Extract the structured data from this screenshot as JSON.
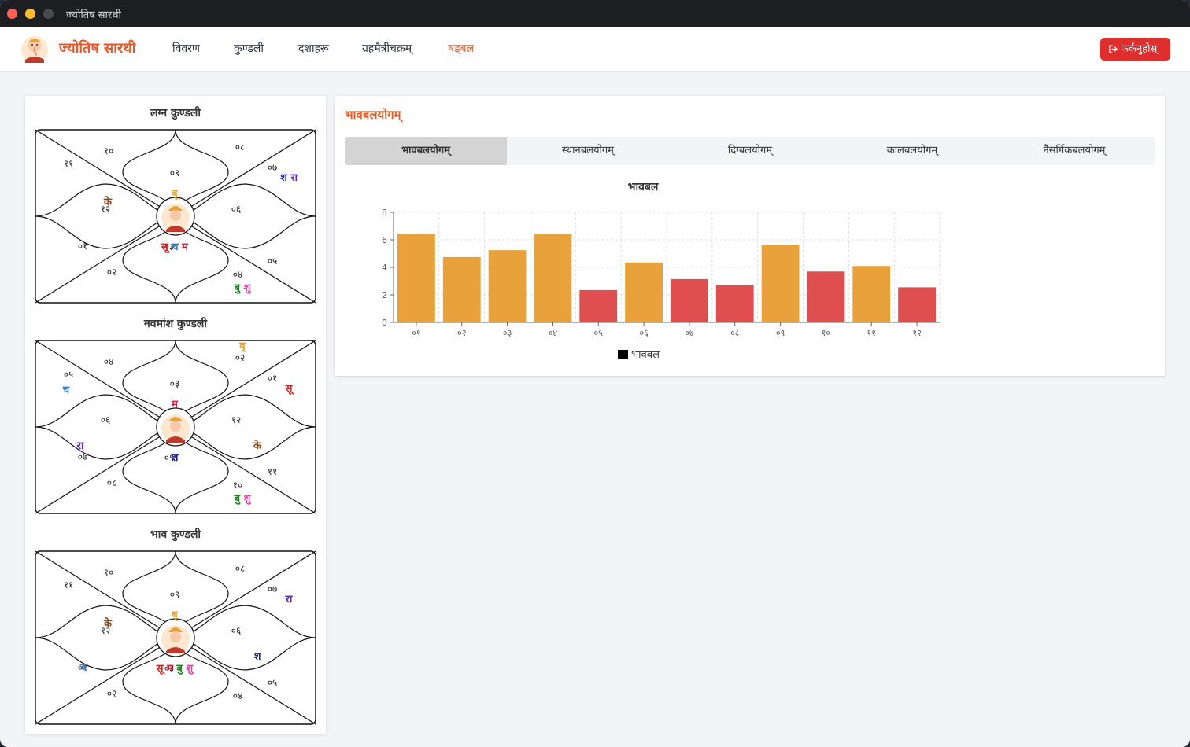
{
  "window": {
    "title": "ज्योतिष सारथी"
  },
  "navbar": {
    "brand": "ज्योतिष सारथी",
    "items": [
      "विवरण",
      "कुण्डली",
      "दशाहरू",
      "ग्रहमैत्रीचक्रम्",
      "षड्बल"
    ],
    "active_index": 4,
    "logout_label": "फर्कनुहोस्"
  },
  "kundalis": [
    {
      "title": "लग्न कुण्डली",
      "house_numbers": [
        "०९",
        "१०",
        "११",
        "१२",
        "०१",
        "०२",
        "०३",
        "०४",
        "०५",
        "०६",
        "०७",
        "०८"
      ],
      "planets": [
        [
          {
            "t": "बृ",
            "c": "#e8a23a"
          }
        ],
        [
          {
            "t": "के",
            "c": "#8b4513"
          }
        ],
        [],
        [],
        [],
        [],
        [
          {
            "t": "सू",
            "c": "#cc2222"
          },
          {
            "t": "च",
            "c": "#3a7ac2"
          },
          {
            "t": "म",
            "c": "#cc2244"
          }
        ],
        [
          {
            "t": "बु",
            "c": "#1e7a1e"
          },
          {
            "t": "शु",
            "c": "#d946a0"
          }
        ],
        [],
        [],
        [
          {
            "t": "श",
            "c": "#1e1e8a"
          },
          {
            "t": "रा",
            "c": "#5b21b6"
          }
        ],
        []
      ]
    },
    {
      "title": "नवमांश कुण्डली",
      "house_numbers": [
        "०३",
        "०४",
        "०५",
        "०६",
        "०७",
        "०८",
        "०९",
        "१०",
        "११",
        "१२",
        "०१",
        "०२"
      ],
      "planets": [
        [
          {
            "t": "म",
            "c": "#cc2244"
          }
        ],
        [],
        [
          {
            "t": "च",
            "c": "#3a7ac2"
          }
        ],
        [
          {
            "t": "रा",
            "c": "#5b21b6"
          }
        ],
        [],
        [],
        [
          {
            "t": "श",
            "c": "#1e1e8a"
          }
        ],
        [
          {
            "t": "बु",
            "c": "#1e7a1e"
          },
          {
            "t": "शु",
            "c": "#d946a0"
          }
        ],
        [],
        [
          {
            "t": "के",
            "c": "#8b4513"
          }
        ],
        [
          {
            "t": "सू",
            "c": "#cc2222"
          }
        ],
        [
          {
            "t": "बृ",
            "c": "#e8a23a"
          }
        ]
      ]
    },
    {
      "title": "भाव कुण्डली",
      "house_numbers": [
        "०९",
        "१०",
        "११",
        "१२",
        "०१",
        "०२",
        "०३",
        "०४",
        "०५",
        "०६",
        "०७",
        "०८"
      ],
      "planets": [
        [
          {
            "t": "बृ",
            "c": "#e8a23a"
          }
        ],
        [
          {
            "t": "के",
            "c": "#8b4513"
          }
        ],
        [],
        [],
        [
          {
            "t": "च",
            "c": "#3a7ac2"
          }
        ],
        [],
        [
          {
            "t": "सू",
            "c": "#cc2222"
          },
          {
            "t": "म",
            "c": "#cc2244"
          },
          {
            "t": "बु",
            "c": "#1e7a1e"
          },
          {
            "t": "शु",
            "c": "#d946a0"
          }
        ],
        [],
        [],
        [
          {
            "t": "श",
            "c": "#1e1e8a"
          }
        ],
        [
          {
            "t": "रा",
            "c": "#5b21b6"
          }
        ],
        []
      ]
    }
  ],
  "panel": {
    "title": "भावबलयोगम्",
    "tabs": [
      "भावबलयोगम्",
      "स्थानबलयोगम्",
      "दिग्बलयोगम्",
      "कालबलयोगम्",
      "नैसर्गिकबलयोगम्"
    ],
    "active_tab": 0
  },
  "colors": {
    "above": "#e9a23b",
    "below": "#e04f4f",
    "accent": "#e35b2a"
  },
  "chart_data": {
    "type": "bar",
    "title": "भावबल",
    "categories": [
      "०१",
      "०२",
      "०३",
      "०४",
      "०५",
      "०६",
      "०७",
      "०८",
      "०९",
      "१०",
      "११",
      "१२"
    ],
    "series": [
      {
        "name": "भावबल",
        "values": [
          6.45,
          4.75,
          5.25,
          6.45,
          2.35,
          4.35,
          3.15,
          2.7,
          5.65,
          3.7,
          4.1,
          2.55
        ]
      }
    ],
    "bar_colors": [
      "#e9a23b",
      "#e9a23b",
      "#e9a23b",
      "#e9a23b",
      "#e04f4f",
      "#e9a23b",
      "#e04f4f",
      "#e04f4f",
      "#e9a23b",
      "#e04f4f",
      "#e9a23b",
      "#e04f4f"
    ],
    "ylim": [
      0,
      8
    ],
    "yticks": [
      0,
      2,
      4,
      6,
      8
    ],
    "grid": true,
    "legend": "bottom"
  }
}
